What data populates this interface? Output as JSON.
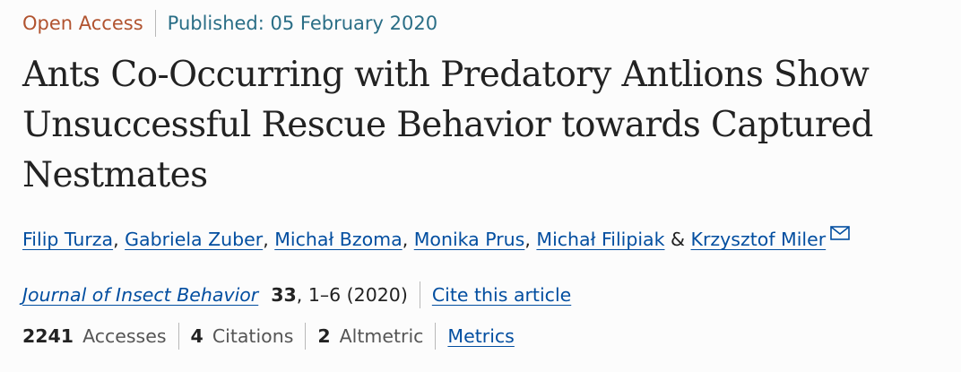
{
  "header": {
    "access": "Open Access",
    "published": "Published: 05 February 2020"
  },
  "article": {
    "title": "Ants Co-Occurring with Predatory Antlions Show Unsuccessful Rescue Behavior towards Captured Nestmates"
  },
  "authors": {
    "list": [
      "Filip Turza",
      "Gabriela Zuber",
      "Michał Bzoma",
      "Monika Prus",
      "Michał Filipiak",
      "Krzysztof Miler"
    ],
    "sep": ", ",
    "conjunction": " & ",
    "contact_icon": "envelope-icon"
  },
  "journal": {
    "name": "Journal of Insect Behavior",
    "volume": "33",
    "pages_year": ", 1–6 (2020)",
    "cite_label": "Cite this article"
  },
  "metrics": {
    "accesses_value": "2241",
    "accesses_label": "Accesses",
    "citations_value": "4",
    "citations_label": "Citations",
    "altmetric_value": "2",
    "altmetric_label": "Altmetric",
    "metrics_link": "Metrics"
  },
  "colors": {
    "open_access": "#b1532f",
    "published": "#2a6e86",
    "link": "#024ea0",
    "text": "#222222"
  }
}
